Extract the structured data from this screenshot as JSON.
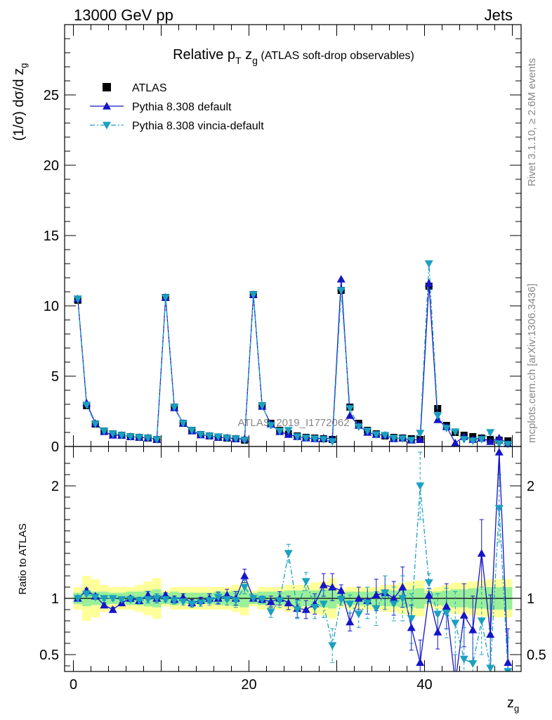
{
  "header": {
    "left": "13000 GeV pp",
    "right": "Jets"
  },
  "side_labels": {
    "rivet": "Rivet 3.1.10, ≥ 2.6M events",
    "mcplots": "mcplots.cern.ch [arXiv:1306.3436]"
  },
  "watermark": "ATLAS_2019_I1772062",
  "colors": {
    "data": "#000000",
    "pythia_default": "#1515c8",
    "vincia": "#1aa0c0",
    "band_inner": "#99f099",
    "band_outer": "#ffff99"
  },
  "chart_data": [
    {
      "type": "scatter",
      "panel": "main",
      "title": "Relative p_T z_g (ATLAS soft-drop observables)",
      "title_parts": {
        "main": "Relative p",
        "sub1": "T",
        "mid": " z",
        "sub2": "g",
        "tail": " (ATLAS soft-drop observables)"
      },
      "ylabel": "(1/σ) dσ/d z_g",
      "xlabel": "z_g",
      "xlim": [
        -1,
        51
      ],
      "ylim": [
        0,
        30
      ],
      "yticks": [
        0,
        5,
        10,
        15,
        20,
        25
      ],
      "xticks": [
        0,
        20,
        40
      ],
      "legend": [
        "ATLAS",
        "Pythia 8.308 default",
        "Pythia 8.308 vincia-default"
      ],
      "legend_position": "top-left",
      "x": [
        0.5,
        1.5,
        2.5,
        3.5,
        4.5,
        5.5,
        6.5,
        7.5,
        8.5,
        9.5,
        10.5,
        11.5,
        12.5,
        13.5,
        14.5,
        15.5,
        16.5,
        17.5,
        18.5,
        19.5,
        20.5,
        21.5,
        22.5,
        23.5,
        24.5,
        25.5,
        26.5,
        27.5,
        28.5,
        29.5,
        30.5,
        31.5,
        32.5,
        33.5,
        34.5,
        35.5,
        36.5,
        37.5,
        38.5,
        39.5,
        40.5,
        41.5,
        42.5,
        43.5,
        44.5,
        45.5,
        46.5,
        47.5,
        48.5,
        49.5
      ],
      "series": [
        {
          "name": "ATLAS",
          "marker": "square",
          "values": [
            10.4,
            2.9,
            1.6,
            1.1,
            0.9,
            0.8,
            0.7,
            0.65,
            0.6,
            0.5,
            10.6,
            2.8,
            1.65,
            1.15,
            0.85,
            0.75,
            0.65,
            0.6,
            0.55,
            0.45,
            10.8,
            2.9,
            1.65,
            1.15,
            0.9,
            0.75,
            0.65,
            0.6,
            0.55,
            0.5,
            11.1,
            2.8,
            1.65,
            1.15,
            0.9,
            0.75,
            0.65,
            0.6,
            0.55,
            0.5,
            11.4,
            2.7,
            1.5,
            1.0,
            0.8,
            0.7,
            0.6,
            0.5,
            0.45,
            0.4
          ]
        },
        {
          "name": "Pythia 8.308 default",
          "marker": "triangle-up",
          "line": "solid",
          "values": [
            10.5,
            3.1,
            1.65,
            1.05,
            0.8,
            0.8,
            0.7,
            0.65,
            0.62,
            0.5,
            10.6,
            2.75,
            1.65,
            1.1,
            0.82,
            0.75,
            0.65,
            0.62,
            0.55,
            0.55,
            10.8,
            2.85,
            1.6,
            1.05,
            0.85,
            0.7,
            0.6,
            0.55,
            0.6,
            0.55,
            11.9,
            2.2,
            1.5,
            1.0,
            0.85,
            0.8,
            0.55,
            0.6,
            0.45,
            0.5,
            11.6,
            1.9,
            1.4,
            0.25,
            0.7,
            0.5,
            0.6,
            0.35,
            0.6,
            0.2
          ]
        },
        {
          "name": "Pythia 8.308 vincia-default",
          "marker": "triangle-down",
          "line": "dashdot",
          "values": [
            10.5,
            2.95,
            1.6,
            1.1,
            0.9,
            0.8,
            0.7,
            0.65,
            0.6,
            0.5,
            10.6,
            2.8,
            1.65,
            1.15,
            0.85,
            0.75,
            0.7,
            0.6,
            0.55,
            0.45,
            10.8,
            2.9,
            1.5,
            1.1,
            1.15,
            0.7,
            0.6,
            0.55,
            0.5,
            0.35,
            11.1,
            2.7,
            1.4,
            1.1,
            0.85,
            0.8,
            0.6,
            0.55,
            0.45,
            0.95,
            13.0,
            2.2,
            1.3,
            1.05,
            0.5,
            0.4,
            0.5,
            1.0,
            0.2,
            0.15
          ]
        }
      ]
    },
    {
      "type": "scatter",
      "panel": "ratio",
      "ylabel": "Ratio to ATLAS",
      "xlabel": "z_g",
      "xlim": [
        -1,
        51
      ],
      "ylim": [
        0.35,
        2.35
      ],
      "yticks": [
        0.5,
        1,
        2
      ],
      "x": [
        0.5,
        1.5,
        2.5,
        3.5,
        4.5,
        5.5,
        6.5,
        7.5,
        8.5,
        9.5,
        10.5,
        11.5,
        12.5,
        13.5,
        14.5,
        15.5,
        16.5,
        17.5,
        18.5,
        19.5,
        20.5,
        21.5,
        22.5,
        23.5,
        24.5,
        25.5,
        26.5,
        27.5,
        28.5,
        29.5,
        30.5,
        31.5,
        32.5,
        33.5,
        34.5,
        35.5,
        36.5,
        37.5,
        38.5,
        39.5,
        40.5,
        41.5,
        42.5,
        43.5,
        44.5,
        45.5,
        46.5,
        47.5,
        48.5,
        49.5
      ],
      "band_inner_halfwidth": [
        0.05,
        0.07,
        0.06,
        0.06,
        0.05,
        0.05,
        0.06,
        0.06,
        0.07,
        0.08,
        0.05,
        0.06,
        0.05,
        0.05,
        0.05,
        0.05,
        0.06,
        0.06,
        0.07,
        0.08,
        0.05,
        0.06,
        0.06,
        0.06,
        0.07,
        0.07,
        0.07,
        0.07,
        0.08,
        0.09,
        0.05,
        0.06,
        0.06,
        0.06,
        0.06,
        0.07,
        0.07,
        0.08,
        0.08,
        0.09,
        0.05,
        0.06,
        0.07,
        0.08,
        0.08,
        0.09,
        0.09,
        0.1,
        0.1,
        0.1
      ],
      "band_outer_halfwidth": [
        0.1,
        0.2,
        0.17,
        0.12,
        0.1,
        0.1,
        0.1,
        0.12,
        0.15,
        0.18,
        0.07,
        0.1,
        0.1,
        0.1,
        0.1,
        0.1,
        0.1,
        0.1,
        0.12,
        0.15,
        0.07,
        0.1,
        0.1,
        0.1,
        0.12,
        0.12,
        0.12,
        0.14,
        0.15,
        0.18,
        0.08,
        0.1,
        0.1,
        0.1,
        0.1,
        0.12,
        0.12,
        0.14,
        0.15,
        0.16,
        0.08,
        0.1,
        0.12,
        0.14,
        0.14,
        0.15,
        0.16,
        0.17,
        0.17,
        0.17
      ],
      "series": [
        {
          "name": "Pythia 8.308 default",
          "values": [
            1.0,
            1.07,
            1.02,
            0.94,
            0.9,
            0.96,
            1.0,
            0.98,
            1.03,
            1.0,
            1.03,
            0.99,
            1.01,
            0.96,
            0.98,
            1.0,
            1.0,
            1.03,
            1.0,
            1.2,
            1.0,
            0.99,
            0.97,
            1.0,
            0.96,
            0.91,
            0.9,
            0.95,
            1.12,
            1.1,
            1.07,
            0.79,
            1.0,
            0.98,
            1.03,
            1.05,
            1.0,
            1.1,
            0.74,
            0.43,
            1.03,
            0.7,
            0.93,
            0.25,
            0.85,
            0.72,
            1.4,
            0.68,
            2.3,
            0.43
          ],
          "errors": [
            0.02,
            0.02,
            0.02,
            0.02,
            0.02,
            0.02,
            0.02,
            0.03,
            0.03,
            0.04,
            0.02,
            0.03,
            0.03,
            0.03,
            0.03,
            0.04,
            0.05,
            0.05,
            0.06,
            0.06,
            0.02,
            0.03,
            0.05,
            0.06,
            0.06,
            0.08,
            0.08,
            0.09,
            0.1,
            0.12,
            0.05,
            0.08,
            0.1,
            0.12,
            0.14,
            0.15,
            0.15,
            0.18,
            0.2,
            0.2,
            0.06,
            0.15,
            0.2,
            0.25,
            0.28,
            0.3,
            0.3,
            0.35,
            0.3,
            0.3
          ]
        },
        {
          "name": "Pythia 8.308 vincia-default",
          "values": [
            1.0,
            1.04,
            1.01,
            1.0,
            1.0,
            0.99,
            0.99,
            0.98,
            0.99,
            1.0,
            0.99,
            0.98,
            0.97,
            0.95,
            0.96,
            0.98,
            1.01,
            0.99,
            0.98,
            1.1,
            1.0,
            0.99,
            0.88,
            0.98,
            1.4,
            0.9,
            1.15,
            0.92,
            0.95,
            0.58,
            0.99,
            0.95,
            0.86,
            0.96,
            0.91,
            1.05,
            0.95,
            1.0,
            0.82,
            2.0,
            1.14,
            0.86,
            0.87,
            0.78,
            0.46,
            0.42,
            0.8,
            0.38,
            1.8,
            0.35
          ],
          "errors": [
            0.02,
            0.02,
            0.02,
            0.02,
            0.02,
            0.02,
            0.02,
            0.03,
            0.03,
            0.04,
            0.02,
            0.03,
            0.03,
            0.03,
            0.03,
            0.04,
            0.05,
            0.05,
            0.06,
            0.06,
            0.02,
            0.03,
            0.05,
            0.06,
            0.08,
            0.08,
            0.08,
            0.1,
            0.12,
            0.15,
            0.05,
            0.08,
            0.12,
            0.14,
            0.15,
            0.15,
            0.15,
            0.2,
            0.22,
            0.3,
            0.08,
            0.18,
            0.22,
            0.28,
            0.28,
            0.3,
            0.3,
            0.35,
            0.3,
            0.3
          ]
        }
      ]
    }
  ]
}
